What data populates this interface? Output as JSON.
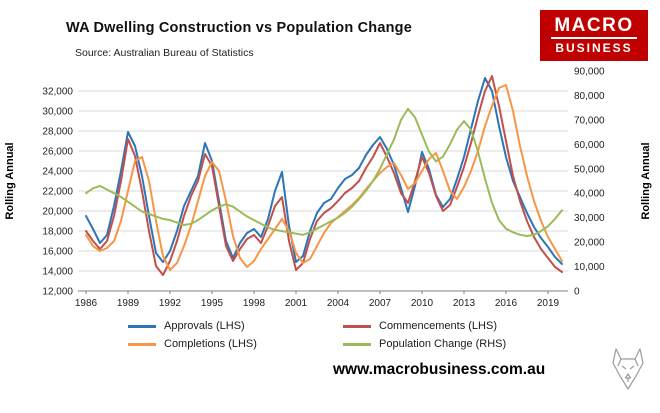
{
  "header": {
    "title": "WA Dwelling Construction vs Population Change",
    "source": "Source: Australian Bureau of Statistics",
    "logo": {
      "line1": "MACRO",
      "line2": "BUSINESS",
      "bg_color": "#c00000"
    }
  },
  "footer": {
    "url": "www.macrobusiness.com.au"
  },
  "chart_data": {
    "type": "line",
    "title": "WA Dwelling Construction vs Population Change",
    "xlabel": "",
    "ylabel_left": "Rolling Annual",
    "ylabel_right": "Rolling Annual",
    "grid": true,
    "legend_position": "bottom",
    "x_range": [
      1986,
      2020
    ],
    "x_ticks": [
      1986,
      1989,
      1992,
      1995,
      1998,
      2001,
      2004,
      2007,
      2010,
      2013,
      2016,
      2019
    ],
    "y_left": {
      "min": 12000,
      "max": 32000,
      "step": 2000
    },
    "y_right": {
      "min": 0,
      "max": 90000,
      "step": 10000
    },
    "x": [
      1986,
      1986.5,
      1987,
      1987.5,
      1988,
      1988.5,
      1989,
      1989.5,
      1990,
      1990.5,
      1991,
      1991.5,
      1992,
      1992.5,
      1993,
      1993.5,
      1994,
      1994.5,
      1995,
      1995.5,
      1996,
      1996.5,
      1997,
      1997.5,
      1998,
      1998.5,
      1999,
      1999.5,
      2000,
      2000.5,
      2001,
      2001.5,
      2002,
      2002.5,
      2003,
      2003.5,
      2004,
      2004.5,
      2005,
      2005.5,
      2006,
      2006.5,
      2007,
      2007.5,
      2008,
      2008.5,
      2009,
      2009.5,
      2010,
      2010.5,
      2011,
      2011.5,
      2012,
      2012.5,
      2013,
      2013.5,
      2014,
      2014.5,
      2015,
      2015.5,
      2016,
      2016.5,
      2017,
      2017.5,
      2018,
      2018.5,
      2019,
      2019.5,
      2020
    ],
    "series": [
      {
        "name": "Approvals (LHS)",
        "axis": "left",
        "color": "#2e75b6",
        "values": [
          19500,
          18200,
          16800,
          17600,
          20500,
          24000,
          27900,
          26500,
          23500,
          19500,
          15800,
          14900,
          16000,
          18000,
          20500,
          22000,
          23500,
          26800,
          25000,
          21000,
          17000,
          15300,
          16800,
          17800,
          18200,
          17400,
          19200,
          22000,
          23900,
          18500,
          14900,
          15500,
          18000,
          19800,
          20800,
          21200,
          22300,
          23200,
          23600,
          24300,
          25600,
          26600,
          27400,
          26200,
          24600,
          22300,
          19900,
          22500,
          25900,
          24200,
          21600,
          20400,
          21200,
          23200,
          25400,
          28200,
          31000,
          33300,
          32000,
          28500,
          25400,
          23000,
          21400,
          19800,
          18400,
          17300,
          16400,
          15400,
          14700
        ]
      },
      {
        "name": "Commencements (LHS)",
        "axis": "left",
        "color": "#c0504d",
        "values": [
          18000,
          17000,
          16200,
          17000,
          19500,
          23000,
          27200,
          25500,
          22000,
          18000,
          14500,
          13600,
          15000,
          17000,
          19500,
          21500,
          23000,
          25700,
          24500,
          20500,
          16500,
          15000,
          16200,
          17200,
          17600,
          16800,
          18500,
          20500,
          21400,
          17000,
          14100,
          14800,
          17200,
          19000,
          19800,
          20300,
          21000,
          21800,
          22300,
          23000,
          24300,
          25400,
          26800,
          25400,
          23800,
          21800,
          20800,
          23000,
          25400,
          23800,
          21500,
          20000,
          20600,
          22400,
          24400,
          26800,
          29500,
          32000,
          33500,
          30500,
          27000,
          23500,
          21000,
          19000,
          17400,
          16200,
          15300,
          14400,
          13900
        ]
      },
      {
        "name": "Completions (LHS)",
        "axis": "left",
        "color": "#f79646",
        "values": [
          17600,
          16500,
          16000,
          16300,
          17000,
          19000,
          22000,
          25000,
          25400,
          23000,
          19000,
          15500,
          14100,
          14800,
          16500,
          18500,
          21000,
          23500,
          24900,
          24000,
          21000,
          17500,
          15300,
          14400,
          15000,
          16200,
          17200,
          18200,
          19200,
          18000,
          15800,
          14800,
          15200,
          16500,
          17800,
          18800,
          19400,
          20000,
          20600,
          21300,
          22200,
          23000,
          23800,
          24400,
          24800,
          23600,
          22200,
          22800,
          24000,
          25200,
          25800,
          24000,
          22000,
          21200,
          22400,
          24000,
          26000,
          28500,
          30500,
          32300,
          32600,
          30000,
          26500,
          23500,
          21000,
          19000,
          17400,
          16200,
          15000
        ]
      },
      {
        "name": "Population Change (RHS)",
        "axis": "right",
        "color": "#9bbb59",
        "values": [
          40000,
          42000,
          43000,
          41500,
          40000,
          38500,
          36500,
          34500,
          32500,
          31500,
          30500,
          29500,
          29000,
          28000,
          27000,
          27500,
          29000,
          31000,
          33000,
          34500,
          35500,
          34500,
          32500,
          30500,
          29000,
          27500,
          26000,
          25000,
          24500,
          24000,
          23500,
          23000,
          24000,
          25500,
          27000,
          28500,
          30000,
          32000,
          34500,
          37500,
          41000,
          45000,
          50000,
          56000,
          62000,
          70000,
          74500,
          71000,
          64000,
          57000,
          53000,
          55000,
          60000,
          66000,
          69500,
          66000,
          57000,
          46000,
          36000,
          29000,
          25500,
          24000,
          23000,
          22500,
          23000,
          24500,
          26500,
          29500,
          33000
        ]
      }
    ]
  }
}
